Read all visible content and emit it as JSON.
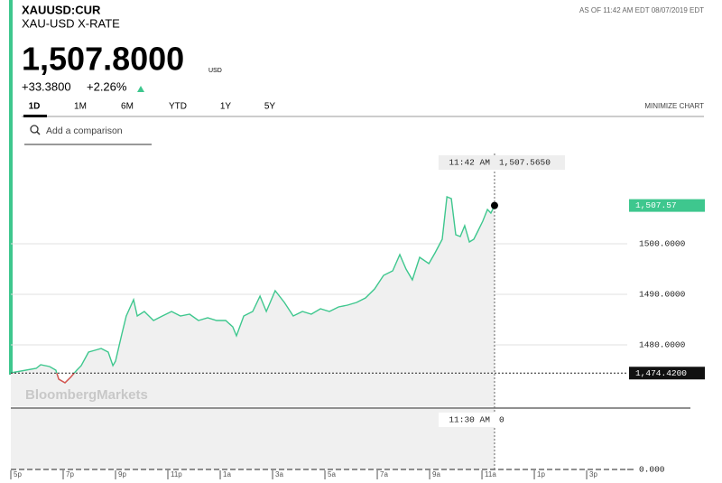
{
  "header": {
    "symbol": "XAUUSD:CUR",
    "name": "XAU-USD X-RATE",
    "as_of": "AS OF 11:42 AM EDT 08/07/2019 EDT",
    "price": "1,507.8000",
    "currency": "USD",
    "change": "+33.3800",
    "change_pct": "+2.26%"
  },
  "tabs": [
    "1D",
    "1M",
    "6M",
    "YTD",
    "1Y",
    "5Y"
  ],
  "minimize": "MINIMIZE CHART",
  "comparison_placeholder": "Add a comparison",
  "watermark": "BloombergMarkets",
  "chart_data": {
    "type": "line",
    "color": "#3ec78e",
    "below_color": "#e05050",
    "x": [
      0,
      0.97,
      1.14,
      1.48,
      1.72,
      1.83,
      2.07,
      2.28,
      2.52,
      2.69,
      2.97,
      3.21,
      3.45,
      3.72,
      3.9,
      4.0,
      4.24,
      4.41,
      4.69,
      4.83,
      5.1,
      5.45,
      5.79,
      6.14,
      6.48,
      6.83,
      7.17,
      7.52,
      7.86,
      8.21,
      8.48,
      8.62,
      8.9,
      9.24,
      9.52,
      9.76,
      10.1,
      10.45,
      10.79,
      11.14,
      11.48,
      11.83,
      12.17,
      12.52,
      12.86,
      13.21,
      13.55,
      13.9,
      14.24,
      14.59,
      14.86,
      15.1,
      15.34,
      15.62,
      15.97,
      16.21,
      16.48,
      16.66,
      16.83,
      17.0,
      17.17,
      17.34,
      17.52,
      17.69,
      17.86,
      18.03,
      18.21,
      18.34,
      18.48
    ],
    "values": [
      1474.46,
      1475.36,
      1476.07,
      1475.71,
      1475.0,
      1473.21,
      1472.5,
      1473.57,
      1475.0,
      1475.89,
      1478.57,
      1478.93,
      1479.29,
      1478.57,
      1475.89,
      1476.79,
      1482.14,
      1485.71,
      1488.93,
      1485.71,
      1486.61,
      1484.82,
      1485.71,
      1486.61,
      1485.71,
      1486.07,
      1484.82,
      1485.36,
      1484.82,
      1484.82,
      1483.57,
      1481.79,
      1485.71,
      1486.61,
      1489.64,
      1486.61,
      1490.71,
      1488.39,
      1485.71,
      1486.61,
      1486.07,
      1487.14,
      1486.61,
      1487.5,
      1487.86,
      1488.39,
      1489.29,
      1491.07,
      1493.75,
      1494.64,
      1497.86,
      1495.0,
      1492.86,
      1497.32,
      1496.07,
      1498.21,
      1500.89,
      1509.29,
      1508.93,
      1501.79,
      1501.43,
      1503.57,
      1500.36,
      1500.89,
      1502.68,
      1504.46,
      1506.79,
      1506.07,
      1507.57
    ],
    "xlim": [
      0,
      23.55
    ],
    "xticks": [
      {
        "value": 0,
        "label": "5p"
      },
      {
        "value": 2,
        "label": "7p"
      },
      {
        "value": 4,
        "label": "9p"
      },
      {
        "value": 6,
        "label": "11p"
      },
      {
        "value": 8,
        "label": "1a"
      },
      {
        "value": 10,
        "label": "3a"
      },
      {
        "value": 12,
        "label": "5a"
      },
      {
        "value": 14,
        "label": "7a"
      },
      {
        "value": 16,
        "label": "9a"
      },
      {
        "value": 18,
        "label": "11a"
      },
      {
        "value": 20,
        "label": "1p"
      },
      {
        "value": 22,
        "label": "3p"
      }
    ],
    "ylim": [
      1467.86,
      1518.75
    ],
    "yticks": [
      {
        "value": 1480,
        "label": "1480.0000"
      },
      {
        "value": 1490,
        "label": "1490.0000"
      },
      {
        "value": 1500,
        "label": "1500.0000"
      }
    ],
    "grid": true,
    "last_label": "1,507.57",
    "previous_close": {
      "value": 1474.42,
      "label": "1,474.4200"
    },
    "crosshair_time": "11:42 AM",
    "crosshair_value": "1,507.5650",
    "volume": {
      "ticks": [
        {
          "value": 0,
          "label": "0.000"
        }
      ],
      "crosshair_time": "11:30 AM",
      "crosshair_value": "0"
    }
  }
}
